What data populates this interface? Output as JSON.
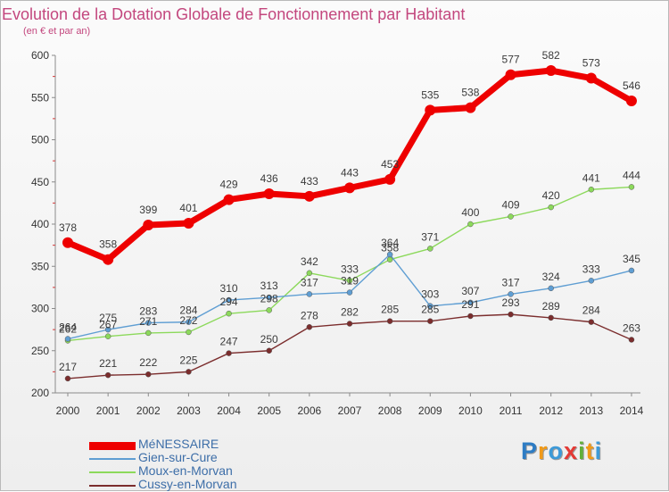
{
  "title": "Evolution de la Dotation Globale de Fonctionnement par Habitant",
  "subtitle": "(en € et par an)",
  "logo": {
    "text": "Proxiti",
    "letters": [
      {
        "ch": "P",
        "color": "#2d7cc4"
      },
      {
        "ch": "r",
        "color": "#f19a18"
      },
      {
        "ch": "o",
        "color": "#3d9ad8"
      },
      {
        "ch": "x",
        "color": "#e43a35"
      },
      {
        "ch": "i",
        "color": "#62b03a"
      },
      {
        "ch": "t",
        "color": "#f19a18"
      },
      {
        "ch": "i",
        "color": "#3d9ad8"
      }
    ]
  },
  "chart_data": {
    "type": "line",
    "title": "Evolution de la Dotation Globale de Fonctionnement par Habitant",
    "subtitle": "(en € et par an)",
    "x": [
      "2000",
      "2001",
      "2002",
      "2003",
      "2004",
      "2005",
      "2006",
      "2007",
      "2008",
      "2009",
      "2010",
      "2011",
      "2012",
      "2013",
      "2014"
    ],
    "ylim": [
      200,
      600
    ],
    "yticks": [
      200,
      250,
      300,
      350,
      400,
      450,
      500,
      550,
      600
    ],
    "grid": false,
    "legend_position": "bottom-left",
    "series": [
      {
        "name": "MéNESSAIRE",
        "color": "#ee0000",
        "values": [
          378,
          358,
          399,
          401,
          429,
          436,
          433,
          443,
          453,
          535,
          538,
          577,
          582,
          573,
          546
        ]
      },
      {
        "name": "Gien-sur-Cure",
        "color": "#5f9ed3",
        "values": [
          264,
          275,
          283,
          284,
          310,
          313,
          317,
          319,
          364,
          303,
          307,
          317,
          324,
          333,
          345
        ]
      },
      {
        "name": "Moux-en-Morvan",
        "color": "#8cd95b",
        "values": [
          262,
          267,
          271,
          272,
          294,
          298,
          342,
          333,
          358,
          371,
          400,
          409,
          420,
          441,
          444
        ]
      },
      {
        "name": "Cussy-en-Morvan",
        "color": "#7b2d2d",
        "values": [
          217,
          221,
          222,
          225,
          247,
          250,
          278,
          282,
          285,
          285,
          291,
          293,
          289,
          284,
          263
        ]
      }
    ],
    "data_labels": [
      [
        "378",
        "358",
        "399",
        "401",
        "429",
        "436",
        "433",
        "443",
        "453",
        "535",
        "538",
        "577",
        "582",
        "573",
        "546"
      ],
      [
        "264",
        "275",
        "283",
        "284",
        "310",
        "313",
        "317",
        "319",
        "364",
        "303",
        "307",
        "317",
        "324",
        "333",
        "345"
      ],
      [
        "262",
        "267",
        "271",
        "272",
        "294",
        "298",
        "342",
        "333",
        "358",
        "371",
        "400",
        "409",
        "420",
        "441",
        "444"
      ],
      [
        "217",
        "221",
        "222",
        "225",
        "247",
        "250",
        "278",
        "282",
        "285",
        "285",
        "291",
        "293",
        "289",
        "284",
        "263"
      ]
    ]
  }
}
